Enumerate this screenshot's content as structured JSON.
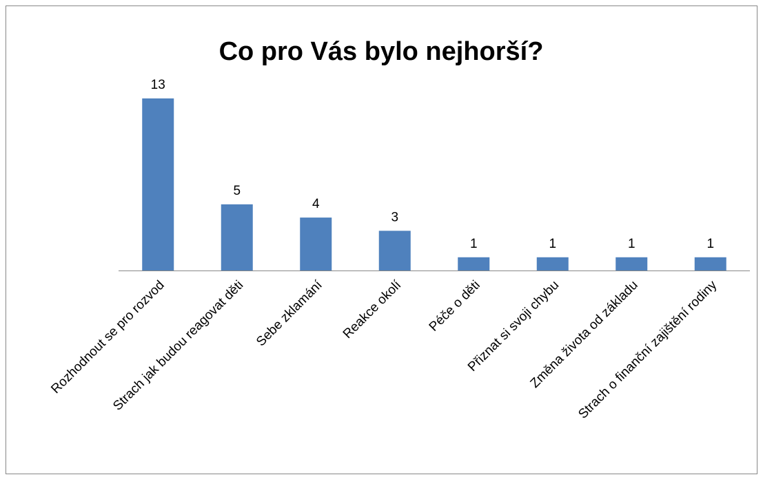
{
  "chart_data": {
    "type": "bar",
    "title": "Co pro Vás bylo nejhorší?",
    "categories": [
      "Rozhodnout se pro rozvod",
      "Strach jak budou reagovat děti",
      "Sebe zklamání",
      "Reakce okolí",
      "Péče o děti",
      "Přiznat si svoji chybu",
      "Změna života od základu",
      "Strach o finanční zajištění rodiny"
    ],
    "values": [
      13,
      5,
      4,
      3,
      1,
      1,
      1,
      1
    ],
    "color": "#4f81bd"
  }
}
